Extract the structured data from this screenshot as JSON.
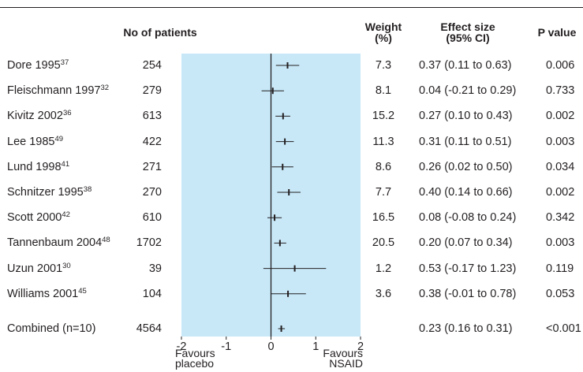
{
  "headers": {
    "patients": "No of patients",
    "weight": [
      "Weight",
      "(%)"
    ],
    "effect": [
      "Effect size",
      "(95% CI)"
    ],
    "pvalue": "P value"
  },
  "rows": [
    {
      "study": "Dore 1995",
      "ref": "37",
      "n": "254",
      "weight": "7.3",
      "effect_text": "0.37 (0.11 to 0.63)",
      "p": "0.006"
    },
    {
      "study": "Fleischmann 1997",
      "ref": "32",
      "n": "279",
      "weight": "8.1",
      "effect_text": "0.04 (-0.21 to 0.29)",
      "p": "0.733"
    },
    {
      "study": "Kivitz 2002",
      "ref": "36",
      "n": "613",
      "weight": "15.2",
      "effect_text": "0.27 (0.10 to 0.43)",
      "p": "0.002"
    },
    {
      "study": "Lee 1985",
      "ref": "49",
      "n": "422",
      "weight": "11.3",
      "effect_text": "0.31 (0.11 to 0.51)",
      "p": "0.003"
    },
    {
      "study": "Lund 1998",
      "ref": "41",
      "n": "271",
      "weight": "8.6",
      "effect_text": "0.26 (0.02 to 0.50)",
      "p": "0.034"
    },
    {
      "study": "Schnitzer 1995",
      "ref": "38",
      "n": "270",
      "weight": "7.7",
      "effect_text": "0.40 (0.14 to 0.66)",
      "p": "0.002"
    },
    {
      "study": "Scott 2000",
      "ref": "42",
      "n": "610",
      "weight": "16.5",
      "effect_text": "0.08 (-0.08 to 0.24)",
      "p": "0.342"
    },
    {
      "study": "Tannenbaum 2004",
      "ref": "48",
      "n": "1702",
      "weight": "20.5",
      "effect_text": "0.20 (0.07 to 0.34)",
      "p": "0.003"
    },
    {
      "study": "Uzun 2001",
      "ref": "30",
      "n": "39",
      "weight": "1.2",
      "effect_text": "0.53 (-0.17 to 1.23)",
      "p": "0.119"
    },
    {
      "study": "Williams 2001",
      "ref": "45",
      "n": "104",
      "weight": "3.6",
      "effect_text": "0.38 (-0.01 to 0.78)",
      "p": "0.053"
    }
  ],
  "combined": {
    "study": "Combined (n=10)",
    "n": "4564",
    "effect_text": "0.23 (0.16 to 0.31)",
    "p": "<0.001"
  },
  "axis_notes": {
    "left": [
      "Favours",
      "placebo"
    ],
    "right": [
      "Favours",
      "NSAID"
    ]
  },
  "colors": {
    "panel": "#c8e8f8",
    "ink": "#231f20"
  },
  "chart_data": {
    "type": "forest",
    "xlim": [
      -2,
      2
    ],
    "ticks": [
      -2,
      -1,
      0,
      1,
      2
    ],
    "reference_line": 0,
    "studies": [
      {
        "name": "Dore 1995",
        "est": 0.37,
        "lo": 0.11,
        "hi": 0.63
      },
      {
        "name": "Fleischmann 1997",
        "est": 0.04,
        "lo": -0.21,
        "hi": 0.29
      },
      {
        "name": "Kivitz 2002",
        "est": 0.27,
        "lo": 0.1,
        "hi": 0.43
      },
      {
        "name": "Lee 1985",
        "est": 0.31,
        "lo": 0.11,
        "hi": 0.51
      },
      {
        "name": "Lund 1998",
        "est": 0.26,
        "lo": 0.02,
        "hi": 0.5
      },
      {
        "name": "Schnitzer 1995",
        "est": 0.4,
        "lo": 0.14,
        "hi": 0.66
      },
      {
        "name": "Scott 2000",
        "est": 0.08,
        "lo": -0.08,
        "hi": 0.24
      },
      {
        "name": "Tannenbaum 2004",
        "est": 0.2,
        "lo": 0.07,
        "hi": 0.34
      },
      {
        "name": "Uzun 2001",
        "est": 0.53,
        "lo": -0.17,
        "hi": 1.23
      },
      {
        "name": "Williams 2001",
        "est": 0.38,
        "lo": -0.01,
        "hi": 0.78
      }
    ],
    "combined": {
      "name": "Combined (n=10)",
      "est": 0.23,
      "lo": 0.16,
      "hi": 0.31
    }
  }
}
